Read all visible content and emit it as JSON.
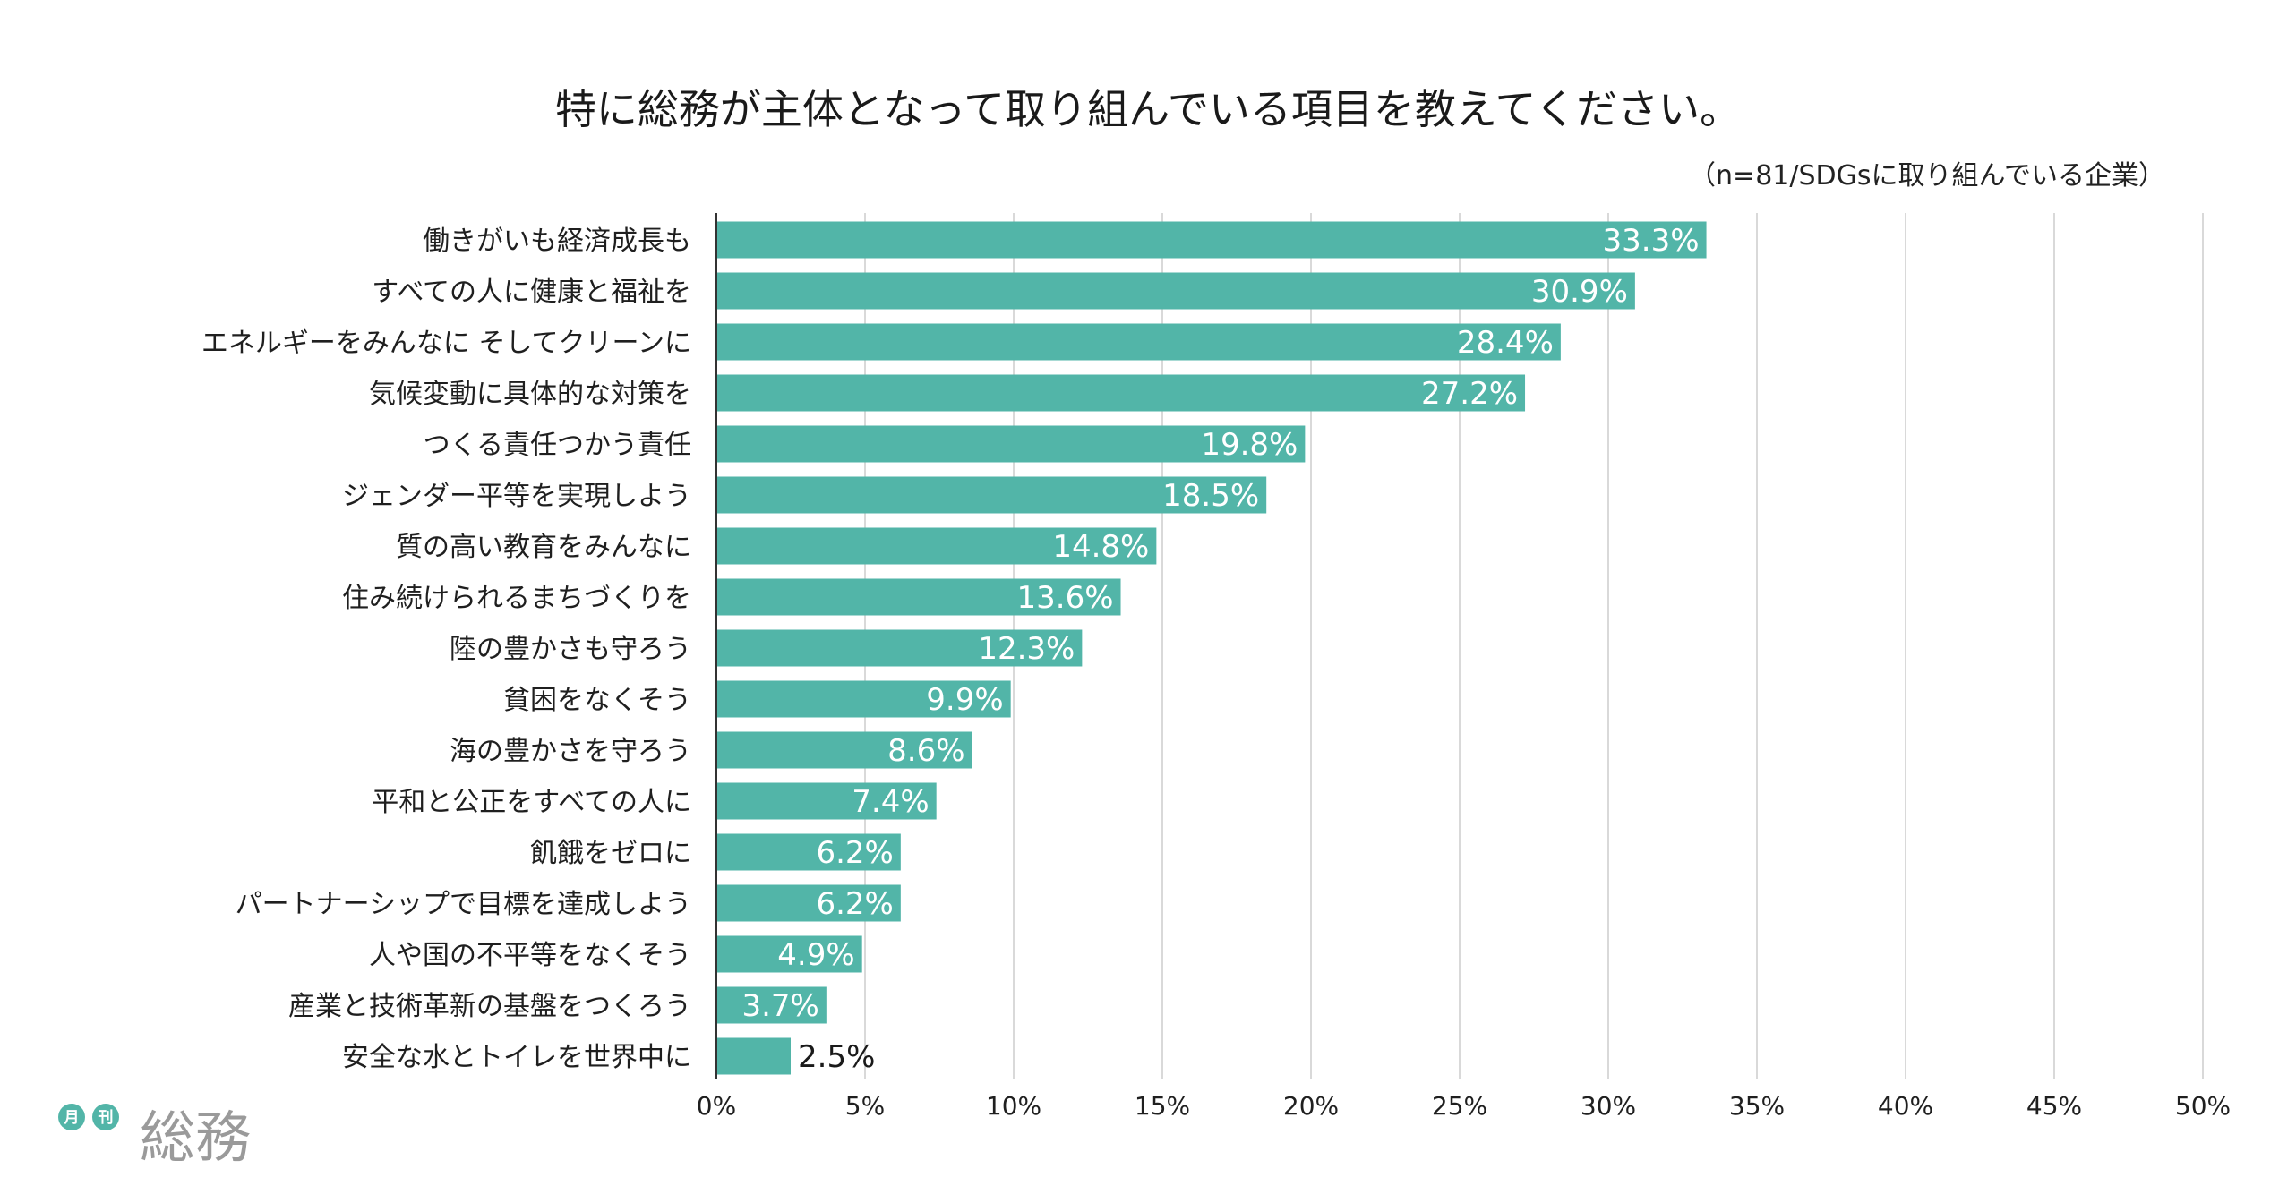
{
  "chart_data": {
    "type": "bar",
    "orientation": "horizontal",
    "title": "特に総務が主体となって取り組んでいる項目を教えてください。",
    "subtitle": "（n=81/SDGsに取り組んでいる企業）",
    "categories": [
      "働きがいも経済成長も",
      "すべての人に健康と福祉を",
      "エネルギーをみんなに そしてクリーンに",
      "気候変動に具体的な対策を",
      "つくる責任つかう責任",
      "ジェンダー平等を実現しよう",
      "質の高い教育をみんなに",
      "住み続けられるまちづくりを",
      "陸の豊かさも守ろう",
      "貧困をなくそう",
      "海の豊かさを守ろう",
      "平和と公正をすべての人に",
      "飢餓をゼロに",
      "パートナーシップで目標を達成しよう",
      "人や国の不平等をなくそう",
      "産業と技術革新の基盤をつくろう",
      "安全な水とトイレを世界中に"
    ],
    "values": [
      33.3,
      30.9,
      28.4,
      27.2,
      19.8,
      18.5,
      14.8,
      13.6,
      12.3,
      9.9,
      8.6,
      7.4,
      6.2,
      6.2,
      4.9,
      3.7,
      2.5
    ],
    "value_labels": [
      "33.3%",
      "30.9%",
      "28.4%",
      "27.2%",
      "19.8%",
      "18.5%",
      "14.8%",
      "13.6%",
      "12.3%",
      "9.9%",
      "8.6%",
      "7.4%",
      "6.2%",
      "6.2%",
      "4.9%",
      "3.7%",
      "2.5%"
    ],
    "xlim": [
      0,
      50
    ],
    "xticks": [
      0,
      5,
      10,
      15,
      20,
      25,
      30,
      35,
      40,
      45,
      50
    ],
    "xtick_labels": [
      "0%",
      "5%",
      "10%",
      "15%",
      "20%",
      "25%",
      "30%",
      "35%",
      "40%",
      "45%",
      "50%"
    ],
    "grid": true,
    "bar_color": "#52b5a8"
  },
  "logo": {
    "badge1": "月",
    "badge2": "刊",
    "text": "総務",
    "color": "#52b5a8"
  }
}
